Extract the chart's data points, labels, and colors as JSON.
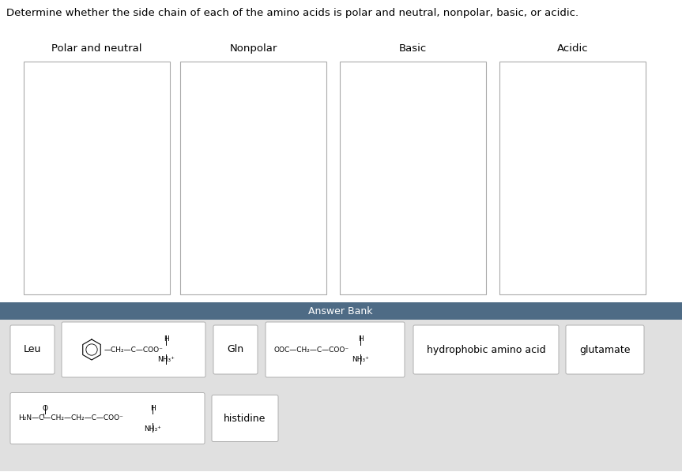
{
  "title": "Determine whether the side chain of each of the amino acids is polar and neutral, nonpolar, basic, or acidic.",
  "title_fontsize": 9.5,
  "columns": [
    "Polar and neutral",
    "Nonpolar",
    "Basic",
    "Acidic"
  ],
  "col_fontsize": 9.5,
  "answer_bank_label": "Answer Bank",
  "answer_bank_header_bg": "#4e6b85",
  "answer_bank_content_bg": "#e0e0e0",
  "box_bg": "#ffffff",
  "box_border": "#999999",
  "fig_bg": "#ffffff",
  "simple_label_fontsize": 8.5,
  "struct_fontsize": 6.5
}
